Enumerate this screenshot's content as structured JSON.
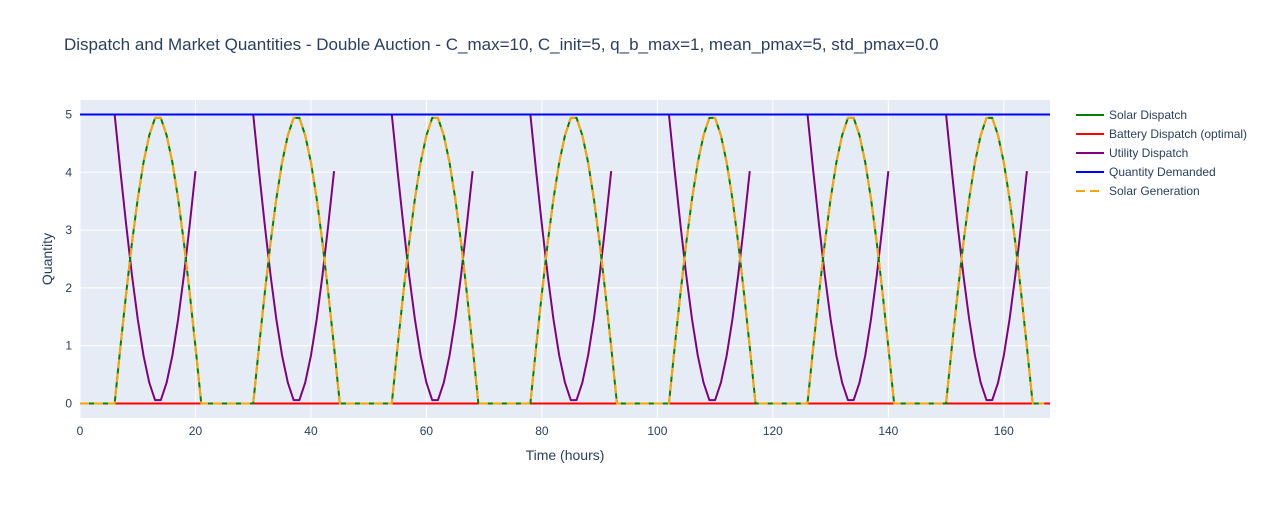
{
  "chart_data": {
    "type": "line",
    "title": "Dispatch and Market Quantities  - Double Auction - C_max=10, C_init=5, q_b_max=1, mean_pmax=5, std_pmax=0.0",
    "xlabel": "Time (hours)",
    "ylabel": "Quantity",
    "xlim": [
      0,
      168
    ],
    "ylim": [
      -0.25,
      5.25
    ],
    "x_ticks": [
      0,
      20,
      40,
      60,
      80,
      100,
      120,
      140,
      160
    ],
    "y_ticks": [
      0,
      1,
      2,
      3,
      4,
      5
    ],
    "grid": true,
    "legend_position": "right",
    "plot_background": "#e5ecf6",
    "daylight": {
      "hours": [
        6,
        7,
        8,
        9,
        10,
        11,
        12,
        13,
        14,
        15,
        16,
        17,
        18,
        19,
        20
      ],
      "solar_values": [
        0,
        0.98,
        1.91,
        2.78,
        3.54,
        4.17,
        4.64,
        4.94,
        4.94,
        4.64,
        4.17,
        3.54,
        2.78,
        1.91,
        0.98
      ],
      "days": 7,
      "period_hours": 24
    },
    "series": [
      {
        "name": "Solar Dispatch",
        "color": "#008000",
        "dash": "solid",
        "shape": "solar"
      },
      {
        "name": "Battery Dispatch (optimal)",
        "color": "#ff0000",
        "dash": "solid",
        "shape": "zero"
      },
      {
        "name": "Utility Dispatch",
        "color": "#800080",
        "dash": "solid",
        "shape": "utility"
      },
      {
        "name": "Quantity Demanded",
        "color": "#0000ff",
        "dash": "solid",
        "shape": "constant",
        "value": 5
      },
      {
        "name": "Solar Generation",
        "color": "#ffa500",
        "dash": "dash",
        "shape": "solar"
      }
    ]
  }
}
